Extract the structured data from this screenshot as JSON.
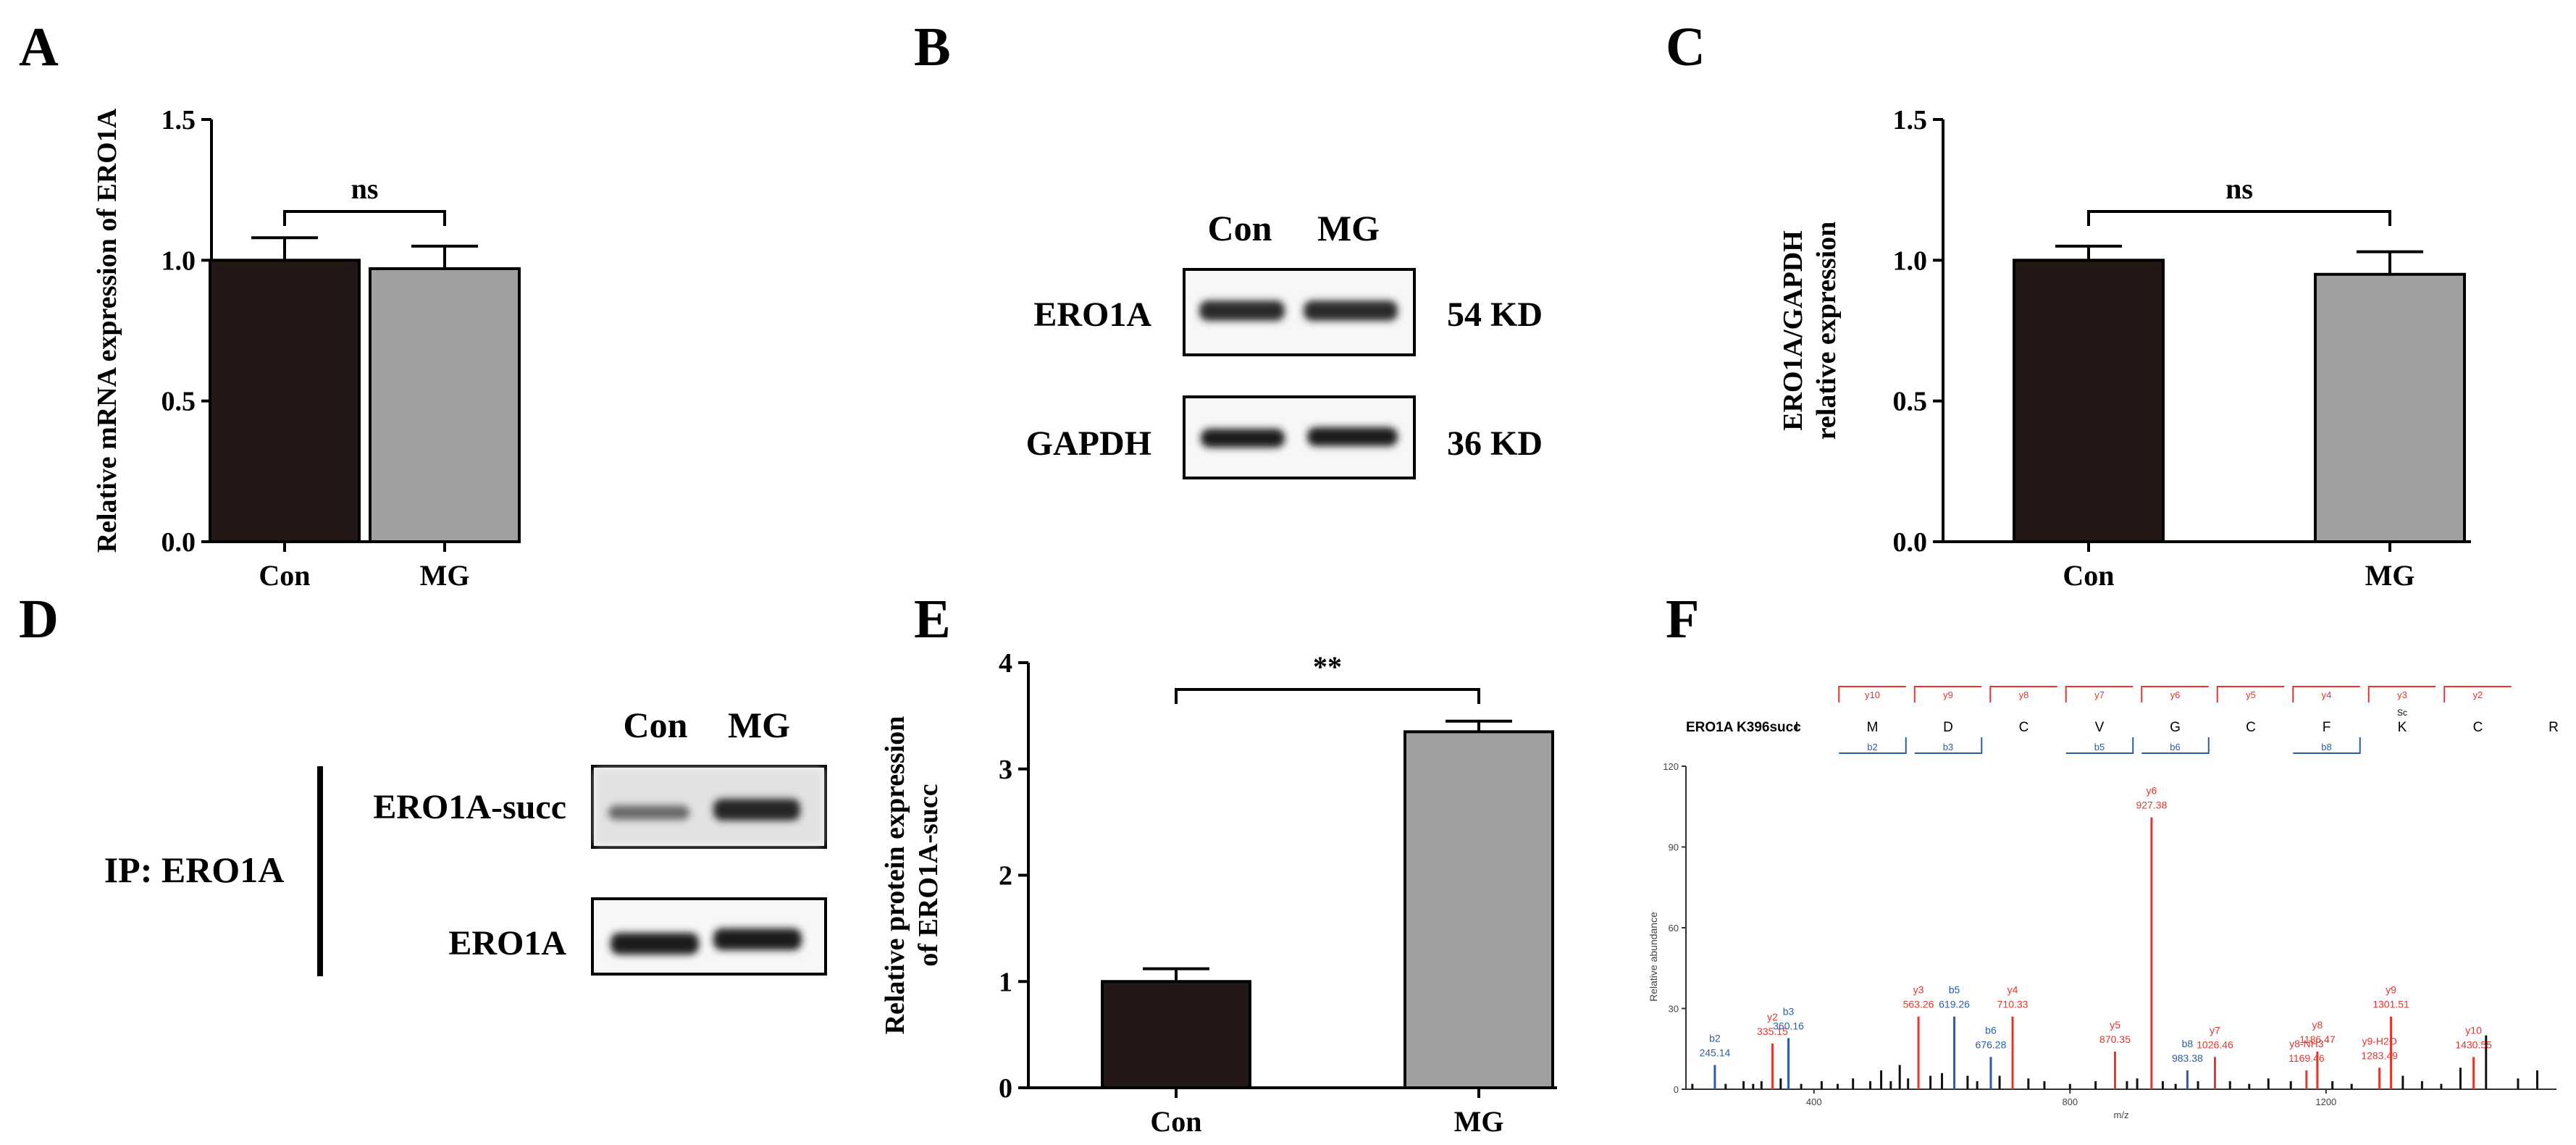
{
  "colors": {
    "con": "#231815",
    "mg": "#a0a0a0",
    "frag_y": "#e8342b",
    "frag_b": "#2a5cab",
    "peak": "#111111"
  },
  "panel_letters": [
    "A",
    "B",
    "C",
    "D",
    "E",
    "F"
  ],
  "chart_data": [
    {
      "panel": "A",
      "type": "bar",
      "categories": [
        "Con",
        "MG"
      ],
      "values": [
        1.0,
        0.97
      ],
      "errors": [
        0.08,
        0.08
      ],
      "ylabel": "Relative mRNA expression of ERO1A",
      "ylim": [
        0,
        1.5
      ],
      "yticks": [
        "0.0",
        "0.5",
        "1.0",
        "1.5"
      ],
      "ytick_values": [
        0,
        0.5,
        1.0,
        1.5
      ],
      "significance": "ns"
    },
    {
      "panel": "C",
      "type": "bar",
      "categories": [
        "Con",
        "MG"
      ],
      "values": [
        1.0,
        0.95
      ],
      "errors": [
        0.05,
        0.08
      ],
      "ylabel_lines": [
        "ERO1A/GAPDH",
        "relative expression"
      ],
      "ylim": [
        0,
        1.5
      ],
      "yticks": [
        "0.0",
        "0.5",
        "1.0",
        "1.5"
      ],
      "ytick_values": [
        0,
        0.5,
        1.0,
        1.5
      ],
      "significance": "ns"
    },
    {
      "panel": "E",
      "type": "bar",
      "categories": [
        "Con",
        "MG"
      ],
      "values": [
        1.0,
        3.35
      ],
      "errors": [
        0.12,
        0.1
      ],
      "ylabel_lines": [
        "Relative protein expression",
        "of ERO1A-succ"
      ],
      "ylim": [
        0,
        4
      ],
      "yticks": [
        "0",
        "1",
        "2",
        "3",
        "4"
      ],
      "ytick_values": [
        0,
        1,
        2,
        3,
        4
      ],
      "significance": "**"
    },
    {
      "panel": "F",
      "type": "spectrum",
      "title": "ERO1A K396succ",
      "xlabel": "m/z",
      "ylabel": "Relative abundance",
      "xlim": [
        200,
        1560
      ],
      "ylim": [
        0,
        120
      ],
      "xticks": [
        "400",
        "800",
        "1200"
      ],
      "xtick_values": [
        400,
        800,
        1200
      ],
      "yticks": [
        "0",
        "30",
        "60",
        "90",
        "120"
      ],
      "ytick_values": [
        0,
        30,
        60,
        90,
        120
      ],
      "sequence": [
        "I",
        "M",
        "D",
        "C",
        "V",
        "G",
        "C",
        "F",
        "K",
        "C",
        "R"
      ],
      "mod_label": "Sc",
      "y_ion_labels": [
        "y10",
        "y9",
        "y8",
        "y7",
        "y6",
        "y5",
        "y4",
        "y3",
        "y2"
      ],
      "b_ion_labels": [
        "b2",
        "b3",
        "",
        "b5",
        "b6",
        "",
        "b8",
        "",
        ""
      ],
      "peaks_labeled": [
        {
          "label": "b2",
          "mz": 245.14,
          "mz_text": "245.14",
          "intensity": 9,
          "ion": "b"
        },
        {
          "label": "y2",
          "mz": 335.15,
          "mz_text": "335.15",
          "intensity": 17,
          "ion": "y"
        },
        {
          "label": "b3",
          "mz": 360.16,
          "mz_text": "360.16",
          "intensity": 19,
          "ion": "b"
        },
        {
          "label": "y3",
          "mz": 563.26,
          "mz_text": "563.26",
          "intensity": 27,
          "ion": "y"
        },
        {
          "label": "b5",
          "mz": 619.26,
          "mz_text": "619.26",
          "intensity": 27,
          "ion": "b"
        },
        {
          "label": "b6",
          "mz": 676.28,
          "mz_text": "676.28",
          "intensity": 12,
          "ion": "b"
        },
        {
          "label": "y4",
          "mz": 710.33,
          "mz_text": "710.33",
          "intensity": 27,
          "ion": "y"
        },
        {
          "label": "y5",
          "mz": 870.35,
          "mz_text": "870.35",
          "intensity": 14,
          "ion": "y"
        },
        {
          "label": "y6",
          "mz": 927.38,
          "mz_text": "927.38",
          "intensity": 101,
          "ion": "y"
        },
        {
          "label": "b8",
          "mz": 983.38,
          "mz_text": "983.38",
          "intensity": 7,
          "ion": "b"
        },
        {
          "label": "y7",
          "mz": 1026.46,
          "mz_text": "1026.46",
          "intensity": 12,
          "ion": "y"
        },
        {
          "label": "y8-NH3",
          "mz": 1169.46,
          "mz_text": "1169.46",
          "intensity": 7,
          "ion": "y"
        },
        {
          "label": "y8",
          "mz": 1186.47,
          "mz_text": "1186.47",
          "intensity": 14,
          "ion": "y"
        },
        {
          "label": "y9-H2O",
          "mz": 1283.49,
          "mz_text": "1283.49",
          "intensity": 8,
          "ion": "y"
        },
        {
          "label": "y9",
          "mz": 1301.51,
          "mz_text": "1301.51",
          "intensity": 27,
          "ion": "y"
        },
        {
          "label": "y10",
          "mz": 1430.55,
          "mz_text": "1430.55",
          "intensity": 12,
          "ion": "y"
        }
      ],
      "peaks_unlabeled": [
        {
          "mz": 210,
          "intensity": 2
        },
        {
          "mz": 262,
          "intensity": 2
        },
        {
          "mz": 290,
          "intensity": 3
        },
        {
          "mz": 305,
          "intensity": 2
        },
        {
          "mz": 318,
          "intensity": 3
        },
        {
          "mz": 348,
          "intensity": 4
        },
        {
          "mz": 380,
          "intensity": 2
        },
        {
          "mz": 412,
          "intensity": 3
        },
        {
          "mz": 437,
          "intensity": 2
        },
        {
          "mz": 461,
          "intensity": 4
        },
        {
          "mz": 488,
          "intensity": 3
        },
        {
          "mz": 505,
          "intensity": 7
        },
        {
          "mz": 520,
          "intensity": 3
        },
        {
          "mz": 534,
          "intensity": 9
        },
        {
          "mz": 547,
          "intensity": 4
        },
        {
          "mz": 582,
          "intensity": 5
        },
        {
          "mz": 600,
          "intensity": 6
        },
        {
          "mz": 640,
          "intensity": 5
        },
        {
          "mz": 655,
          "intensity": 3
        },
        {
          "mz": 690,
          "intensity": 5
        },
        {
          "mz": 735,
          "intensity": 4
        },
        {
          "mz": 760,
          "intensity": 3
        },
        {
          "mz": 800,
          "intensity": 2
        },
        {
          "mz": 840,
          "intensity": 3
        },
        {
          "mz": 889,
          "intensity": 3
        },
        {
          "mz": 905,
          "intensity": 4
        },
        {
          "mz": 945,
          "intensity": 3
        },
        {
          "mz": 965,
          "intensity": 2
        },
        {
          "mz": 1000,
          "intensity": 3
        },
        {
          "mz": 1050,
          "intensity": 3
        },
        {
          "mz": 1080,
          "intensity": 2
        },
        {
          "mz": 1110,
          "intensity": 4
        },
        {
          "mz": 1145,
          "intensity": 3
        },
        {
          "mz": 1210,
          "intensity": 3
        },
        {
          "mz": 1240,
          "intensity": 2
        },
        {
          "mz": 1320,
          "intensity": 5
        },
        {
          "mz": 1350,
          "intensity": 3
        },
        {
          "mz": 1380,
          "intensity": 2
        },
        {
          "mz": 1410,
          "intensity": 8
        },
        {
          "mz": 1450,
          "intensity": 20
        },
        {
          "mz": 1500,
          "intensity": 4
        },
        {
          "mz": 1530,
          "intensity": 7
        }
      ]
    }
  ],
  "blot_B": {
    "lane_labels": [
      "Con",
      "MG"
    ],
    "rows": [
      {
        "protein": "ERO1A",
        "size": "54 KD"
      },
      {
        "protein": "GAPDH",
        "size": "36 KD"
      }
    ]
  },
  "blot_D": {
    "lane_labels": [
      "Con",
      "MG"
    ],
    "ip_label": "IP: ERO1A",
    "rows": [
      {
        "protein": "ERO1A-succ"
      },
      {
        "protein": "ERO1A"
      }
    ]
  }
}
